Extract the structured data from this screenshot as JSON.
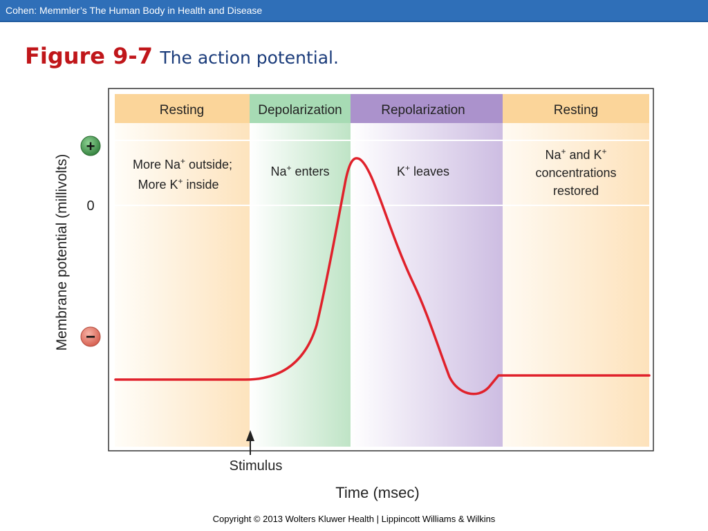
{
  "header": {
    "source_text": "Cohen: Memmler’s The Human Body in Health and Disease"
  },
  "figure": {
    "label": "Figure 9-7",
    "caption": "The action potential."
  },
  "phases": {
    "resting_1": "Resting",
    "depolarization": "Depolarization",
    "repolarization": "Repolarization",
    "resting_2": "Resting"
  },
  "notes": {
    "resting_1_line1": "More Na",
    "resting_1_line1_end": " outside;",
    "resting_1_line2": "More K",
    "resting_1_line2_end": " inside",
    "depol": "Na",
    "depol_end": " enters",
    "repol": "K",
    "repol_end": " leaves",
    "resting_2_line1a": "Na",
    "resting_2_line1b": " and K",
    "resting_2_line2": "concentrations",
    "resting_2_line3": "restored",
    "plus_sup": "+"
  },
  "axes": {
    "ylabel": "Membrane potential (millivolts)",
    "xlabel": "Time (msec)",
    "zero_label": "0",
    "positive_symbol": "+",
    "negative_symbol": "−"
  },
  "stimulus_label": "Stimulus",
  "footer": {
    "copyright": "Copyright © 2013 Wolters Kluwer Health | Lippincott Williams & Wilkins"
  },
  "colors": {
    "resting": "#fde6c4",
    "resting_header": "#fbd59a",
    "depolarization": "#a7dbb4",
    "repolarization": "#c3b1da",
    "repolarization_header": "#ab92cc",
    "curve": "#e0212b",
    "plus_button": "#4a9a54",
    "minus_button": "#e7776a"
  }
}
